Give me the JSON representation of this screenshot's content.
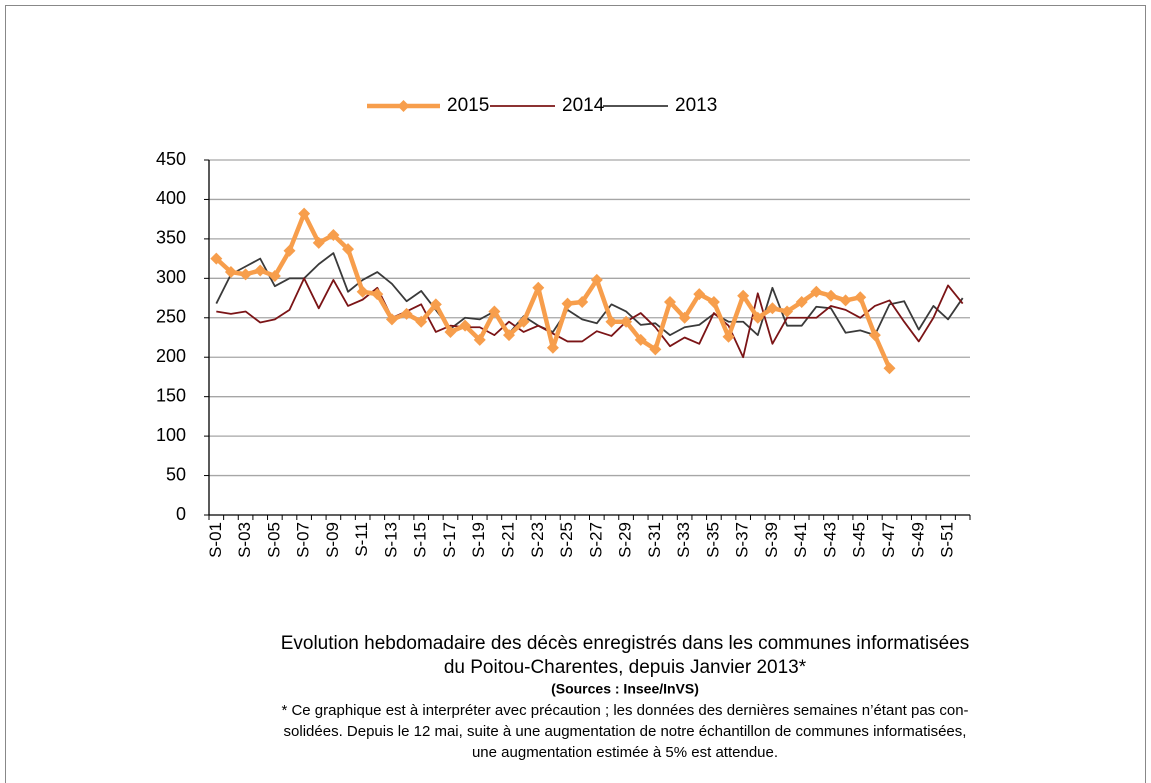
{
  "chart_data": {
    "type": "line",
    "categories": [
      "S-01",
      null,
      "S-03",
      null,
      "S-05",
      null,
      "S-07",
      null,
      "S-09",
      null,
      "S-11",
      null,
      "S-13",
      null,
      "S-15",
      null,
      "S-17",
      null,
      "S-19",
      null,
      "S-21",
      null,
      "S-23",
      null,
      "S-25",
      null,
      "S-27",
      null,
      "S-29",
      null,
      "S-31",
      null,
      "S-33",
      null,
      "S-35",
      null,
      "S-37",
      null,
      "S-39",
      null,
      "S-41",
      null,
      "S-43",
      null,
      "S-45",
      null,
      "S-47",
      null,
      "S-49",
      null,
      "S-51",
      null
    ],
    "series": [
      {
        "name": "2015",
        "color": "#f79e4c",
        "marker": "diamond",
        "values": [
          325,
          308,
          305,
          310,
          303,
          335,
          382,
          345,
          355,
          337,
          283,
          280,
          248,
          255,
          245,
          267,
          232,
          240,
          222,
          258,
          228,
          245,
          288,
          212,
          268,
          270,
          298,
          245,
          245,
          222,
          210,
          270,
          250,
          280,
          270,
          226,
          278,
          250,
          262,
          258,
          270,
          283,
          278,
          272,
          276,
          228,
          186,
          null,
          null,
          null,
          null,
          null
        ]
      },
      {
        "name": "2014",
        "color": "#7b1416",
        "values": [
          258,
          255,
          258,
          244,
          248,
          260,
          300,
          262,
          298,
          265,
          273,
          288,
          250,
          258,
          267,
          232,
          240,
          238,
          238,
          228,
          245,
          232,
          240,
          230,
          220,
          220,
          233,
          227,
          245,
          256,
          238,
          214,
          225,
          217,
          256,
          240,
          200,
          281,
          217,
          250,
          250,
          250,
          265,
          260,
          250,
          265,
          272,
          245,
          220,
          250,
          291,
          268
        ]
      },
      {
        "name": "2013",
        "color": "#3a3a3a",
        "values": [
          268,
          305,
          315,
          325,
          290,
          300,
          300,
          318,
          332,
          283,
          298,
          308,
          293,
          271,
          284,
          260,
          236,
          250,
          248,
          258,
          230,
          252,
          240,
          232,
          260,
          248,
          243,
          267,
          258,
          241,
          243,
          228,
          238,
          241,
          255,
          245,
          245,
          228,
          288,
          240,
          240,
          264,
          262,
          231,
          234,
          228,
          267,
          271,
          235,
          265,
          248,
          275
        ]
      }
    ],
    "ylim": [
      0,
      450
    ],
    "yticks": [
      0,
      50,
      100,
      150,
      200,
      250,
      300,
      350,
      400,
      450
    ],
    "grid": true,
    "legend": "top",
    "title": [
      "Evolution hebdomadaire des décès enregistrés dans les communes informatisées",
      "du Poitou-Charentes, depuis Janvier  2013*"
    ],
    "source": "(Sources : Insee/InVS)",
    "note": [
      "* Ce graphique est à interpréter avec précaution ; les données des dernières semaines n’étant pas con-",
      "solidées. Depuis le 12 mai, suite à une augmentation de notre échantillon de communes informatisées,",
      "une augmentation estimée à 5% est attendue."
    ]
  }
}
